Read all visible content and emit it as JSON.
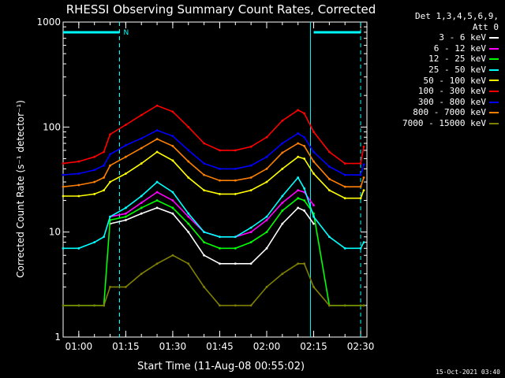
{
  "chart_data": {
    "type": "line",
    "title": "RHESSI Observing Summary Count Rates, Corrected",
    "xlabel": "Start Time (11-Aug-08 00:55:02)",
    "ylabel": "Corrected Count Rate (s⁻¹ detector⁻¹)",
    "yscale": "log",
    "ylim": [
      1,
      1000
    ],
    "xlim": [
      "00:55",
      "02:32"
    ],
    "x_ticks": [
      "01:00",
      "01:15",
      "01:30",
      "01:45",
      "02:00",
      "02:15",
      "02:30"
    ],
    "y_ticks": [
      "1",
      "10",
      "100",
      "1000"
    ],
    "legend_header": [
      "Det 1,3,4,5,6,9,",
      "Att 0"
    ],
    "legend_position": "right",
    "annotations": [
      {
        "type": "bar",
        "label": "",
        "color": "#00ffff",
        "from": "00:55",
        "to": "01:13"
      },
      {
        "type": "marker",
        "label": "N",
        "color": "#00ffff",
        "at": "01:13"
      },
      {
        "type": "bar",
        "label": "",
        "color": "#00ffff",
        "from": "02:15",
        "to": "02:30"
      }
    ],
    "x": [
      "00:55",
      "01:00",
      "01:05",
      "01:08",
      "01:10",
      "01:15",
      "01:20",
      "01:25",
      "01:30",
      "01:35",
      "01:40",
      "01:45",
      "01:50",
      "01:55",
      "02:00",
      "02:05",
      "02:10",
      "02:12",
      "02:15",
      "02:20",
      "02:25",
      "02:30",
      "02:31"
    ],
    "series": [
      {
        "name": "3 - 6 keV",
        "color": "#ffffff",
        "values": [
          null,
          null,
          null,
          null,
          12,
          13,
          15,
          17,
          15,
          10,
          6,
          5,
          5,
          5,
          7,
          12,
          17,
          16,
          12,
          null,
          null,
          null,
          null
        ]
      },
      {
        "name": "6 - 12 keV",
        "color": "#ff00ff",
        "values": [
          null,
          null,
          null,
          null,
          14,
          15,
          19,
          24,
          20,
          14,
          10,
          9,
          9,
          10,
          13,
          19,
          25,
          24,
          18,
          null,
          null,
          null,
          null
        ]
      },
      {
        "name": "12 - 25 keV",
        "color": "#00ff00",
        "values": [
          2,
          2,
          2,
          2,
          13,
          14,
          17,
          20,
          17,
          12,
          8,
          7,
          7,
          8,
          10,
          16,
          21,
          20,
          15,
          2,
          2,
          2,
          2
        ]
      },
      {
        "name": "25 - 50 keV",
        "color": "#00ffff",
        "values": [
          7,
          7,
          8,
          9,
          14,
          17,
          22,
          30,
          24,
          15,
          10,
          9,
          9,
          11,
          14,
          22,
          33,
          26,
          14,
          9,
          7,
          7,
          8
        ]
      },
      {
        "name": "50 - 100 keV",
        "color": "#ffff00",
        "values": [
          22,
          22,
          23,
          25,
          30,
          36,
          45,
          58,
          48,
          33,
          25,
          23,
          23,
          25,
          30,
          40,
          52,
          50,
          36,
          25,
          21,
          21,
          25
        ]
      },
      {
        "name": "100 - 300 keV",
        "color": "#ff0000",
        "values": [
          45,
          47,
          52,
          58,
          85,
          105,
          130,
          160,
          140,
          100,
          70,
          60,
          60,
          65,
          80,
          115,
          145,
          135,
          90,
          58,
          45,
          45,
          65
        ]
      },
      {
        "name": "300 - 800 keV",
        "color": "#0000ff",
        "values": [
          35,
          36,
          39,
          43,
          55,
          67,
          78,
          93,
          82,
          60,
          45,
          40,
          40,
          43,
          52,
          70,
          87,
          80,
          58,
          42,
          35,
          35,
          44
        ]
      },
      {
        "name": "800 - 7000 keV",
        "color": "#ff8000",
        "values": [
          27,
          28,
          30,
          33,
          43,
          52,
          63,
          77,
          66,
          47,
          35,
          31,
          31,
          33,
          40,
          57,
          70,
          66,
          47,
          32,
          27,
          27,
          33
        ]
      },
      {
        "name": "7000 - 15000 keV",
        "color": "#808000",
        "values": [
          2,
          2,
          2,
          2,
          3,
          3,
          4,
          5,
          6,
          5,
          3,
          2,
          2,
          2,
          3,
          4,
          5,
          5,
          3,
          2,
          2,
          2,
          2
        ]
      }
    ]
  },
  "footer": {
    "timestamp": "15-Oct-2021 03:40"
  }
}
